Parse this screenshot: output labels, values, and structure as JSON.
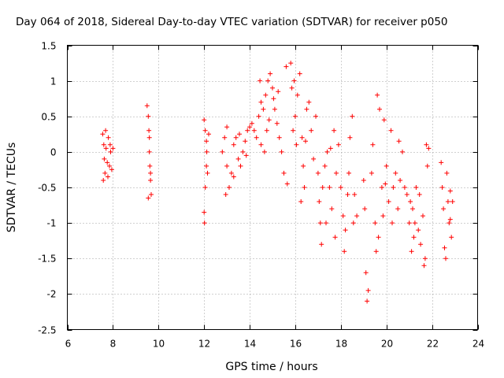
{
  "chart_data": {
    "type": "scatter",
    "title": "Day 064 of 2018, Sidereal Day-to-day VTEC variation (SDTVAR) for receiver p050",
    "xlabel": "GPS time / hours",
    "ylabel": "SDTVAR / TECUs",
    "xlim": [
      6,
      24
    ],
    "ylim": [
      -2.5,
      1.5
    ],
    "xticks": [
      6,
      8,
      10,
      12,
      14,
      16,
      18,
      20,
      22,
      24
    ],
    "yticks": [
      -2.5,
      -2,
      -1.5,
      -1,
      -0.5,
      0,
      0.5,
      1,
      1.5
    ],
    "xtick_labels": [
      "6",
      "8",
      "10",
      "12",
      "14",
      "16",
      "18",
      "20",
      "22",
      "24"
    ],
    "ytick_labels": [
      "-2.5",
      "-2",
      "-1.5",
      "-1",
      "-0.5",
      "0",
      "0.5",
      "1",
      "1.5"
    ],
    "grid": true,
    "marker": "+",
    "marker_color": "#ff0000",
    "series": [
      {
        "name": "p050",
        "points": [
          [
            7.55,
            0.25
          ],
          [
            7.6,
            0.1
          ],
          [
            7.62,
            -0.1
          ],
          [
            7.65,
            -0.3
          ],
          [
            7.7,
            0.05
          ],
          [
            7.75,
            -0.15
          ],
          [
            7.8,
            0.2
          ],
          [
            7.85,
            -0.2
          ],
          [
            7.9,
            0.0
          ],
          [
            7.95,
            -0.25
          ],
          [
            8.0,
            0.05
          ],
          [
            7.58,
            -0.4
          ],
          [
            7.68,
            0.3
          ],
          [
            7.78,
            -0.35
          ],
          [
            7.88,
            0.1
          ],
          [
            9.5,
            0.65
          ],
          [
            9.55,
            0.5
          ],
          [
            9.58,
            0.3
          ],
          [
            9.6,
            0.0
          ],
          [
            9.62,
            -0.2
          ],
          [
            9.65,
            -0.4
          ],
          [
            9.68,
            -0.6
          ],
          [
            9.55,
            -0.65
          ],
          [
            9.6,
            0.2
          ],
          [
            9.65,
            -0.3
          ],
          [
            12.0,
            0.45
          ],
          [
            12.05,
            0.3
          ],
          [
            12.1,
            0.15
          ],
          [
            12.12,
            0.0
          ],
          [
            12.15,
            -0.3
          ],
          [
            12.05,
            -0.5
          ],
          [
            12.0,
            -0.85
          ],
          [
            12.02,
            -1.0
          ],
          [
            12.2,
            0.25
          ],
          [
            12.1,
            -0.2
          ],
          [
            12.8,
            0.0
          ],
          [
            12.9,
            0.2
          ],
          [
            13.0,
            0.35
          ],
          [
            13.0,
            -0.2
          ],
          [
            13.1,
            -0.5
          ],
          [
            12.95,
            -0.6
          ],
          [
            13.2,
            -0.3
          ],
          [
            13.3,
            0.1
          ],
          [
            13.4,
            0.2
          ],
          [
            13.5,
            -0.1
          ],
          [
            13.6,
            -0.2
          ],
          [
            13.7,
            0.0
          ],
          [
            13.8,
            0.15
          ],
          [
            13.9,
            0.3
          ],
          [
            14.0,
            0.35
          ],
          [
            14.1,
            0.4
          ],
          [
            14.2,
            0.3
          ],
          [
            13.3,
            -0.35
          ],
          [
            13.55,
            0.25
          ],
          [
            13.85,
            -0.05
          ],
          [
            14.3,
            0.2
          ],
          [
            14.4,
            0.5
          ],
          [
            14.5,
            0.7
          ],
          [
            14.6,
            0.6
          ],
          [
            14.7,
            0.8
          ],
          [
            14.75,
            0.3
          ],
          [
            14.8,
            1.0
          ],
          [
            14.9,
            1.1
          ],
          [
            15.0,
            0.9
          ],
          [
            15.1,
            0.6
          ],
          [
            15.2,
            0.4
          ],
          [
            14.5,
            0.1
          ],
          [
            14.65,
            0.0
          ],
          [
            15.3,
            0.2
          ],
          [
            15.4,
            0.0
          ],
          [
            15.5,
            -0.3
          ],
          [
            15.6,
            1.2
          ],
          [
            15.65,
            -0.45
          ],
          [
            14.45,
            1.0
          ],
          [
            14.85,
            0.45
          ],
          [
            15.05,
            0.75
          ],
          [
            15.25,
            0.85
          ],
          [
            15.8,
            1.25
          ],
          [
            15.85,
            0.9
          ],
          [
            15.9,
            0.3
          ],
          [
            16.0,
            0.5
          ],
          [
            16.05,
            0.1
          ],
          [
            16.1,
            0.8
          ],
          [
            16.2,
            1.1
          ],
          [
            16.3,
            0.2
          ],
          [
            16.35,
            -0.2
          ],
          [
            16.4,
            -0.5
          ],
          [
            16.5,
            0.6
          ],
          [
            16.6,
            0.7
          ],
          [
            16.7,
            0.3
          ],
          [
            16.8,
            -0.1
          ],
          [
            16.9,
            0.5
          ],
          [
            17.0,
            -0.3
          ],
          [
            17.05,
            -0.7
          ],
          [
            17.1,
            -1.0
          ],
          [
            17.15,
            -1.3
          ],
          [
            17.2,
            -0.5
          ],
          [
            15.95,
            1.0
          ],
          [
            16.25,
            -0.7
          ],
          [
            16.45,
            0.15
          ],
          [
            17.3,
            -0.2
          ],
          [
            17.4,
            0.0
          ],
          [
            17.5,
            -0.5
          ],
          [
            17.6,
            -0.8
          ],
          [
            17.7,
            0.3
          ],
          [
            17.8,
            -0.3
          ],
          [
            17.9,
            0.1
          ],
          [
            18.0,
            -0.5
          ],
          [
            18.1,
            -0.9
          ],
          [
            18.2,
            -1.1
          ],
          [
            18.3,
            -0.6
          ],
          [
            18.4,
            0.2
          ],
          [
            18.5,
            0.5
          ],
          [
            18.6,
            -0.6
          ],
          [
            18.7,
            -0.9
          ],
          [
            17.35,
            -1.0
          ],
          [
            17.55,
            0.05
          ],
          [
            17.75,
            -1.2
          ],
          [
            18.15,
            -1.4
          ],
          [
            18.35,
            -0.3
          ],
          [
            18.55,
            -1.0
          ],
          [
            19.0,
            -0.4
          ],
          [
            19.05,
            -0.8
          ],
          [
            19.1,
            -1.7
          ],
          [
            19.15,
            -2.1
          ],
          [
            19.2,
            -1.95
          ],
          [
            19.4,
            0.1
          ],
          [
            19.5,
            -1.0
          ],
          [
            19.55,
            -1.4
          ],
          [
            19.6,
            0.8
          ],
          [
            19.7,
            0.6
          ],
          [
            19.8,
            -0.5
          ],
          [
            19.85,
            -0.9
          ],
          [
            19.9,
            0.45
          ],
          [
            20.0,
            -0.2
          ],
          [
            20.1,
            -0.7
          ],
          [
            20.2,
            0.3
          ],
          [
            20.3,
            -0.5
          ],
          [
            20.4,
            -0.3
          ],
          [
            20.5,
            -0.8
          ],
          [
            20.6,
            -0.4
          ],
          [
            20.7,
            0.0
          ],
          [
            20.8,
            -0.5
          ],
          [
            19.35,
            -0.3
          ],
          [
            19.65,
            -1.2
          ],
          [
            19.95,
            -0.45
          ],
          [
            20.25,
            -1.0
          ],
          [
            20.55,
            0.15
          ],
          [
            20.9,
            -0.6
          ],
          [
            21.0,
            -1.0
          ],
          [
            21.1,
            -1.4
          ],
          [
            21.15,
            -0.8
          ],
          [
            21.2,
            -1.2
          ],
          [
            21.3,
            -0.5
          ],
          [
            21.4,
            -1.1
          ],
          [
            21.5,
            -1.3
          ],
          [
            21.6,
            -0.9
          ],
          [
            21.7,
            -1.5
          ],
          [
            21.75,
            0.1
          ],
          [
            21.8,
            -0.2
          ],
          [
            21.85,
            0.05
          ],
          [
            21.05,
            -0.7
          ],
          [
            21.25,
            -1.0
          ],
          [
            21.45,
            -0.6
          ],
          [
            21.65,
            -1.6
          ],
          [
            22.4,
            -0.15
          ],
          [
            22.45,
            -0.5
          ],
          [
            22.5,
            -0.8
          ],
          [
            22.55,
            -1.35
          ],
          [
            22.6,
            -1.5
          ],
          [
            22.7,
            -0.7
          ],
          [
            22.75,
            -1.0
          ],
          [
            22.8,
            -0.55
          ],
          [
            22.85,
            -1.2
          ],
          [
            22.9,
            -0.7
          ],
          [
            22.65,
            -0.3
          ],
          [
            22.8,
            -0.95
          ]
        ]
      }
    ]
  }
}
